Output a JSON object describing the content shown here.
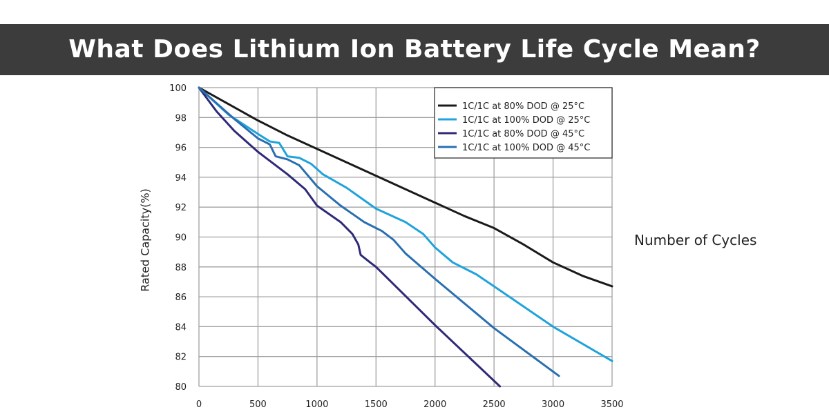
{
  "header": {
    "title": "What Does Lithium Ion Battery Life Cycle Mean?"
  },
  "chart_data": {
    "type": "line",
    "title": "",
    "xlabel": "Number of Cycles",
    "ylabel": "Rated Capacity(%)",
    "xlim": [
      0,
      3500
    ],
    "ylim": [
      80,
      100
    ],
    "xticks": [
      "0",
      "500",
      "1000",
      "1500",
      "2000",
      "2500",
      "3000",
      "3500"
    ],
    "yticks": [
      "80",
      "82",
      "84",
      "86",
      "88",
      "90",
      "92",
      "94",
      "96",
      "98",
      "100"
    ],
    "grid": true,
    "legend_position": "top-right",
    "series": [
      {
        "name": "1C/1C at 80% DOD @ 25°C",
        "color": "#1a1a1a",
        "x": [
          0,
          250,
          500,
          750,
          1000,
          1250,
          1500,
          1750,
          2000,
          2250,
          2500,
          2750,
          3000,
          3250,
          3500
        ],
        "y": [
          100,
          98.9,
          97.8,
          96.8,
          95.9,
          95.0,
          94.1,
          93.2,
          92.3,
          91.4,
          90.6,
          89.5,
          88.3,
          87.4,
          86.7
        ]
      },
      {
        "name": "1C/1C at 100% DOD @ 25°C",
        "color": "#1fa3dc",
        "x": [
          0,
          250,
          500,
          600,
          680,
          750,
          850,
          950,
          1050,
          1250,
          1500,
          1750,
          1900,
          2000,
          2150,
          2350,
          2500,
          3000,
          3500
        ],
        "y": [
          100,
          98.2,
          96.9,
          96.4,
          96.3,
          95.4,
          95.3,
          94.9,
          94.2,
          93.3,
          91.9,
          91.0,
          90.2,
          89.3,
          88.3,
          87.5,
          86.7,
          84.0,
          81.7
        ]
      },
      {
        "name": "1C/1C at 80% DOD @ 45°C",
        "color": "#2e2a78",
        "x": [
          0,
          150,
          300,
          500,
          750,
          900,
          1000,
          1200,
          1300,
          1350,
          1370,
          1450,
          1500,
          2000,
          2550
        ],
        "y": [
          100,
          98.4,
          97.1,
          95.7,
          94.2,
          93.2,
          92.1,
          91.0,
          90.2,
          89.5,
          88.8,
          88.3,
          88.0,
          84.1,
          80.0
        ]
      },
      {
        "name": "1C/1C at 100% DOD @ 45°C",
        "color": "#2a6fb0",
        "x": [
          0,
          300,
          500,
          600,
          650,
          750,
          850,
          1000,
          1200,
          1400,
          1550,
          1650,
          1750,
          2000,
          2500,
          3050
        ],
        "y": [
          100,
          97.9,
          96.6,
          96.2,
          95.4,
          95.2,
          94.8,
          93.4,
          92.1,
          91.0,
          90.4,
          89.8,
          88.9,
          87.2,
          83.9,
          80.7
        ]
      }
    ]
  }
}
